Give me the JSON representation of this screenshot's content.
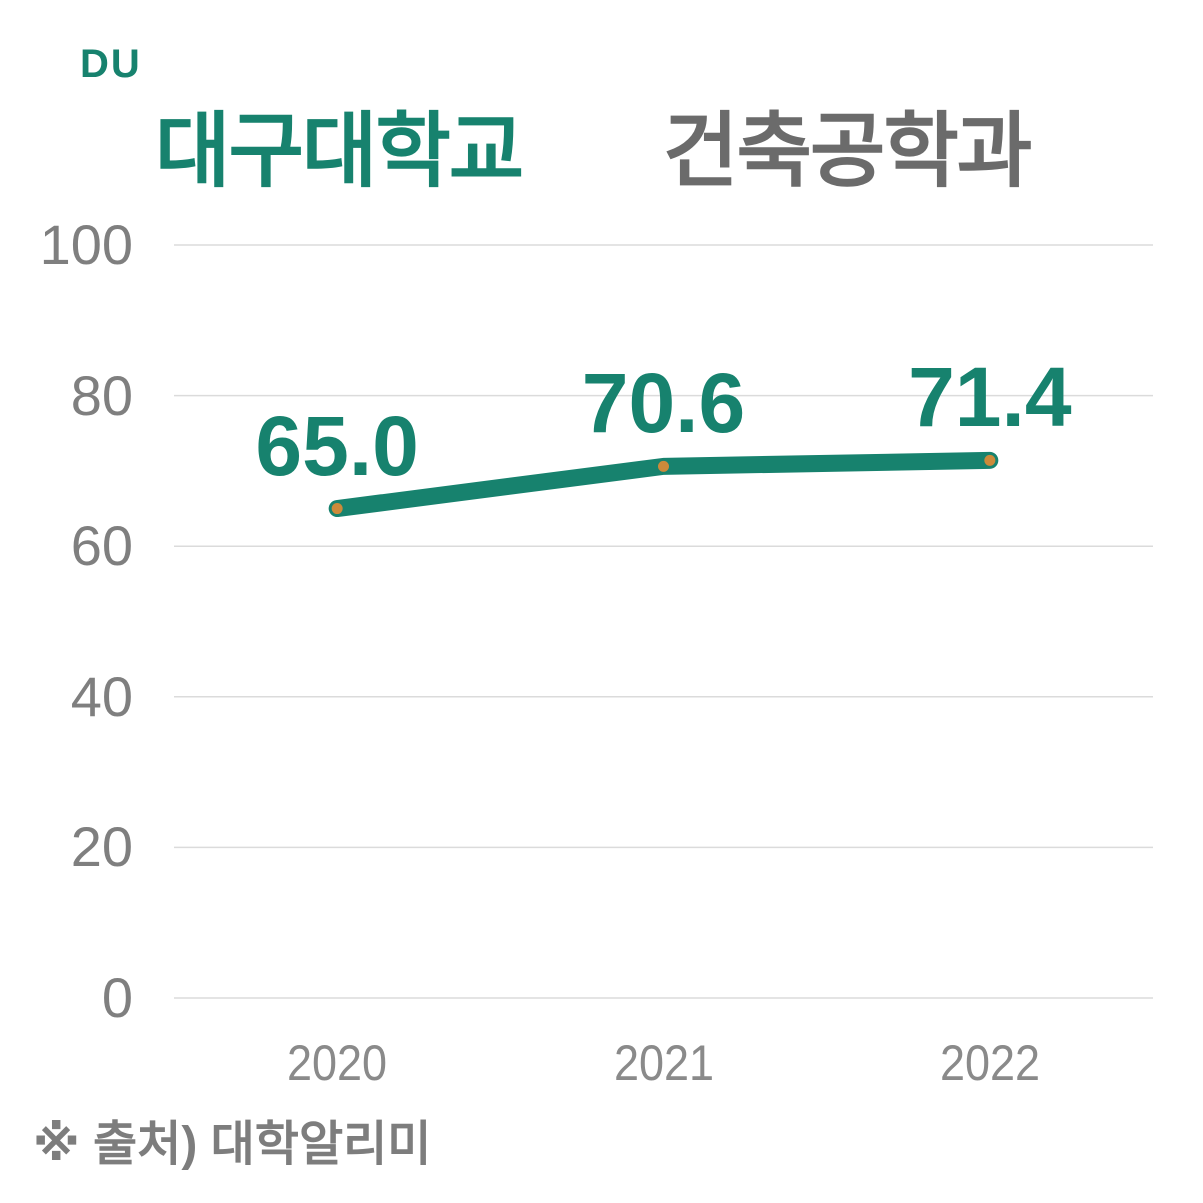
{
  "header": {
    "logo": "DU",
    "university": "대구대학교",
    "department": "건축공학과"
  },
  "footer": {
    "source_note": "※ 출처) 대학알리미"
  },
  "colors": {
    "accent_teal": "#17826E",
    "title_gray": "#6B6B6B",
    "axis_gray": "#7F7F7F",
    "gridline_gray": "#DBDBDB",
    "marker_orange": "#CC8A3A"
  },
  "chart_data": {
    "type": "line",
    "title": "대구대학교 건축공학과",
    "categories": [
      "2020",
      "2021",
      "2022"
    ],
    "values": [
      65.0,
      70.6,
      71.4
    ],
    "value_labels": [
      "65.0",
      "70.6",
      "71.4"
    ],
    "yticks": [
      0,
      20,
      40,
      60,
      80,
      100
    ],
    "ylim": [
      0,
      100
    ],
    "xlabel": "",
    "ylabel": "",
    "grid": true,
    "legend_position": "none",
    "line_color": "#17826E",
    "marker_color": "#CC8A3A"
  }
}
